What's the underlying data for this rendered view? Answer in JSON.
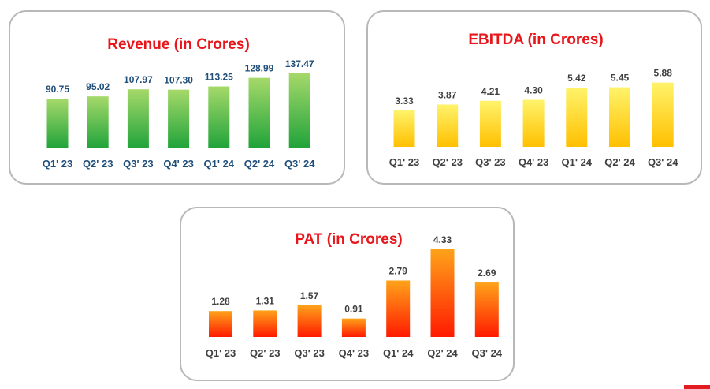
{
  "colors": {
    "title": "#e8161b",
    "revenue_bar_top": "#a6d96a",
    "revenue_bar_bottom": "#1fa33a",
    "revenue_text": "#1f4e79",
    "ebitda_bar_top": "#fff36b",
    "ebitda_bar_bottom": "#ffc000",
    "pat_bar_top": "#ffa31a",
    "pat_bar_bottom": "#ff1a00",
    "dark_text": "#404040",
    "panel_border": "#b8b8b8",
    "corner_mark": "#e31b23"
  },
  "chart_data": [
    {
      "id": "revenue",
      "type": "bar",
      "title": "Revenue (in Crores)",
      "categories": [
        "Q1' 23",
        "Q2' 23",
        "Q3' 23",
        "Q4' 23",
        "Q1' 24",
        "Q2' 24",
        "Q3' 24"
      ],
      "values": [
        90.75,
        95.02,
        107.97,
        107.3,
        113.25,
        128.99,
        137.47
      ],
      "labels": [
        "90.75",
        "95.02",
        "107.97",
        "107.30",
        "113.25",
        "128.99",
        "137.47"
      ],
      "ylim": [
        0,
        140
      ],
      "grid": false,
      "color_keys": [
        "revenue_bar_top",
        "revenue_bar_bottom",
        "revenue_text"
      ]
    },
    {
      "id": "ebitda",
      "type": "bar",
      "title": "EBITDA (in Crores)",
      "categories": [
        "Q1' 23",
        "Q2' 23",
        "Q3' 23",
        "Q4' 23",
        "Q1' 24",
        "Q2' 24",
        "Q3' 24"
      ],
      "values": [
        3.33,
        3.87,
        4.21,
        4.3,
        5.42,
        5.45,
        5.88
      ],
      "labels": [
        "3.33",
        "3.87",
        "4.21",
        "4.30",
        "5.42",
        "5.45",
        "5.88"
      ],
      "ylim": [
        0,
        6
      ],
      "grid": false,
      "color_keys": [
        "ebitda_bar_top",
        "ebitda_bar_bottom",
        "dark_text"
      ]
    },
    {
      "id": "pat",
      "type": "bar",
      "title": "PAT (in Crores)",
      "categories": [
        "Q1' 23",
        "Q2' 23",
        "Q3' 23",
        "Q4' 23",
        "Q1' 24",
        "Q2' 24",
        "Q3' 24"
      ],
      "values": [
        1.28,
        1.31,
        1.57,
        0.91,
        2.79,
        4.33,
        2.69
      ],
      "labels": [
        "1.28",
        "1.31",
        "1.57",
        "0.91",
        "2.79",
        "4.33",
        "2.69"
      ],
      "ylim": [
        0,
        4.33
      ],
      "grid": false,
      "color_keys": [
        "pat_bar_top",
        "pat_bar_bottom",
        "dark_text"
      ]
    }
  ]
}
